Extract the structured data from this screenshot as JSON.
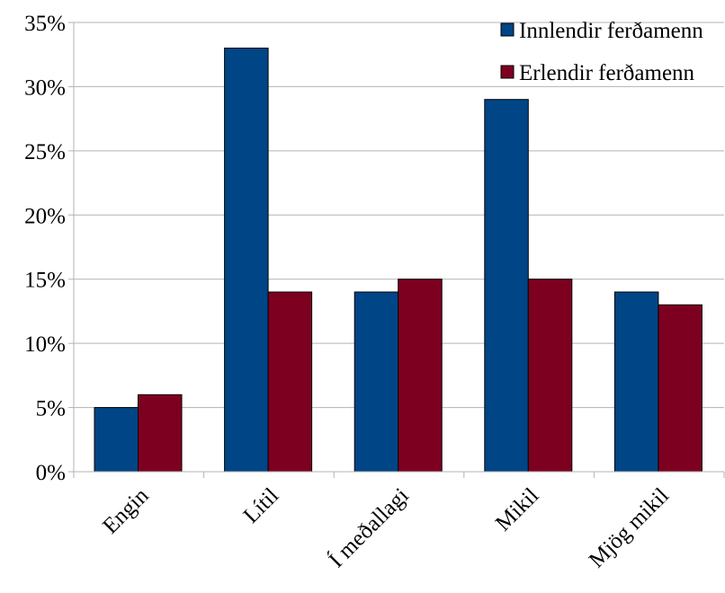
{
  "chart_data": {
    "type": "bar",
    "categories": [
      "Engin",
      "Lítil",
      "Í meðallagi",
      "Mikil",
      "Mjög mikil"
    ],
    "series": [
      {
        "name": "Innlendir ferðamenn",
        "values": [
          5,
          33,
          14,
          29,
          14
        ],
        "color": "#004586"
      },
      {
        "name": "Erlendir ferðamenn",
        "values": [
          6,
          14,
          15,
          15,
          13
        ],
        "color": "#7e0021"
      }
    ],
    "yticks": [
      "0%",
      "5%",
      "10%",
      "15%",
      "20%",
      "25%",
      "30%",
      "35%"
    ],
    "ylim": [
      0,
      35
    ],
    "grid": true,
    "legend_position": "top-right"
  }
}
